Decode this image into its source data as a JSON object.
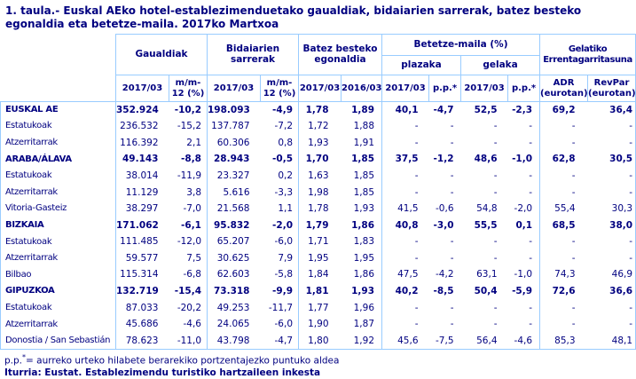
{
  "title": "1. taula.- Euskal AEko hotel-establezimenduetako gaualdiak, bidaiarien sarrerak, batez besteko egonaldia eta betetze-maila. 2017ko Martxoa",
  "colors": {
    "text_navy": "#000080",
    "border_blue": "#99CCFF",
    "background": "#FFFFFF"
  },
  "table": {
    "groups": [
      {
        "label": "Gaualdiak"
      },
      {
        "label": "Bidaiarien sarrerak"
      },
      {
        "label": "Batez besteko egonaldia"
      },
      {
        "label": "Betetze-maila (%)"
      },
      {
        "label": "Gelatiko Errentagarritasuna"
      }
    ],
    "subgroups": [
      "plazaka",
      "gelaka"
    ],
    "subheaders": [
      "2017/03",
      "m/m-12 (%)",
      "2017/03",
      "m/m-12 (%)",
      "2017/03",
      "2016/03",
      "2017/03",
      "p.p.*",
      "2017/03",
      "p.p.*",
      "ADR (eurotan)",
      "RevPar (eurotan)"
    ],
    "rows": [
      {
        "label": "EUSKAL AE",
        "bold": true,
        "values": [
          "352.924",
          "-10,2",
          "198.093",
          "-4,9",
          "1,78",
          "1,89",
          "40,1",
          "-4,7",
          "52,5",
          "-2,3",
          "69,2",
          "36,4"
        ]
      },
      {
        "label": "Estatukoak",
        "bold": false,
        "values": [
          "236.532",
          "-15,2",
          "137.787",
          "-7,2",
          "1,72",
          "1,88",
          "-",
          "-",
          "-",
          "-",
          "-",
          "-"
        ]
      },
      {
        "label": "Atzerritarrak",
        "bold": false,
        "values": [
          "116.392",
          "2,1",
          "60.306",
          "0,8",
          "1,93",
          "1,91",
          "-",
          "-",
          "-",
          "-",
          "-",
          "-"
        ]
      },
      {
        "label": "ARABA/ÁLAVA",
        "bold": true,
        "values": [
          "49.143",
          "-8,8",
          "28.943",
          "-0,5",
          "1,70",
          "1,85",
          "37,5",
          "-1,2",
          "48,6",
          "-1,0",
          "62,8",
          "30,5"
        ]
      },
      {
        "label": "Estatukoak",
        "bold": false,
        "values": [
          "38.014",
          "-11,9",
          "23.327",
          "0,2",
          "1,63",
          "1,85",
          "-",
          "-",
          "-",
          "-",
          "-",
          "-"
        ]
      },
      {
        "label": "Atzerritarrak",
        "bold": false,
        "values": [
          "11.129",
          "3,8",
          "5.616",
          "-3,3",
          "1,98",
          "1,85",
          "-",
          "-",
          "-",
          "-",
          "-",
          "-"
        ]
      },
      {
        "label": "Vitoria-Gasteiz",
        "bold": false,
        "values": [
          "38.297",
          "-7,0",
          "21.568",
          "1,1",
          "1,78",
          "1,93",
          "41,5",
          "-0,6",
          "54,8",
          "-2,0",
          "55,4",
          "30,3"
        ]
      },
      {
        "label": "BIZKAIA",
        "bold": true,
        "values": [
          "171.062",
          "-6,1",
          "95.832",
          "-2,0",
          "1,79",
          "1,86",
          "40,8",
          "-3,0",
          "55,5",
          "0,1",
          "68,5",
          "38,0"
        ]
      },
      {
        "label": "Estatukoak",
        "bold": false,
        "values": [
          "111.485",
          "-12,0",
          "65.207",
          "-6,0",
          "1,71",
          "1,83",
          "-",
          "-",
          "-",
          "-",
          "-",
          "-"
        ]
      },
      {
        "label": "Atzerritarrak",
        "bold": false,
        "values": [
          "59.577",
          "7,5",
          "30.625",
          "7,9",
          "1,95",
          "1,95",
          "-",
          "-",
          "-",
          "-",
          "-",
          "-"
        ]
      },
      {
        "label": "Bilbao",
        "bold": false,
        "values": [
          "115.314",
          "-6,8",
          "62.603",
          "-5,8",
          "1,84",
          "1,86",
          "47,5",
          "-4,2",
          "63,1",
          "-1,0",
          "74,3",
          "46,9"
        ]
      },
      {
        "label": "GIPUZKOA",
        "bold": true,
        "values": [
          "132.719",
          "-15,4",
          "73.318",
          "-9,9",
          "1,81",
          "1,93",
          "40,2",
          "-8,5",
          "50,4",
          "-5,9",
          "72,6",
          "36,6"
        ]
      },
      {
        "label": "Estatukoak",
        "bold": false,
        "values": [
          "87.033",
          "-20,2",
          "49.253",
          "-11,7",
          "1,77",
          "1,96",
          "-",
          "-",
          "-",
          "-",
          "-",
          "-"
        ]
      },
      {
        "label": "Atzerritarrak",
        "bold": false,
        "values": [
          "45.686",
          "-4,6",
          "24.065",
          "-6,0",
          "1,90",
          "1,87",
          "-",
          "-",
          "-",
          "-",
          "-",
          "-"
        ]
      },
      {
        "label": "Donostia / San Sebastián",
        "bold": false,
        "values": [
          "78.623",
          "-11,0",
          "43.798",
          "-4,7",
          "1,80",
          "1,92",
          "45,6",
          "-7,5",
          "56,4",
          "-4,6",
          "85,3",
          "48,1"
        ]
      }
    ]
  },
  "footnote": {
    "prefix": "p.p.",
    "star": "*",
    "rest": "= aurreko urteko hilabete berarekiko portzentajezko puntuko aldea"
  },
  "source": "Iturria: Eustat. Establezimendu turistiko hartzaileen inkesta"
}
